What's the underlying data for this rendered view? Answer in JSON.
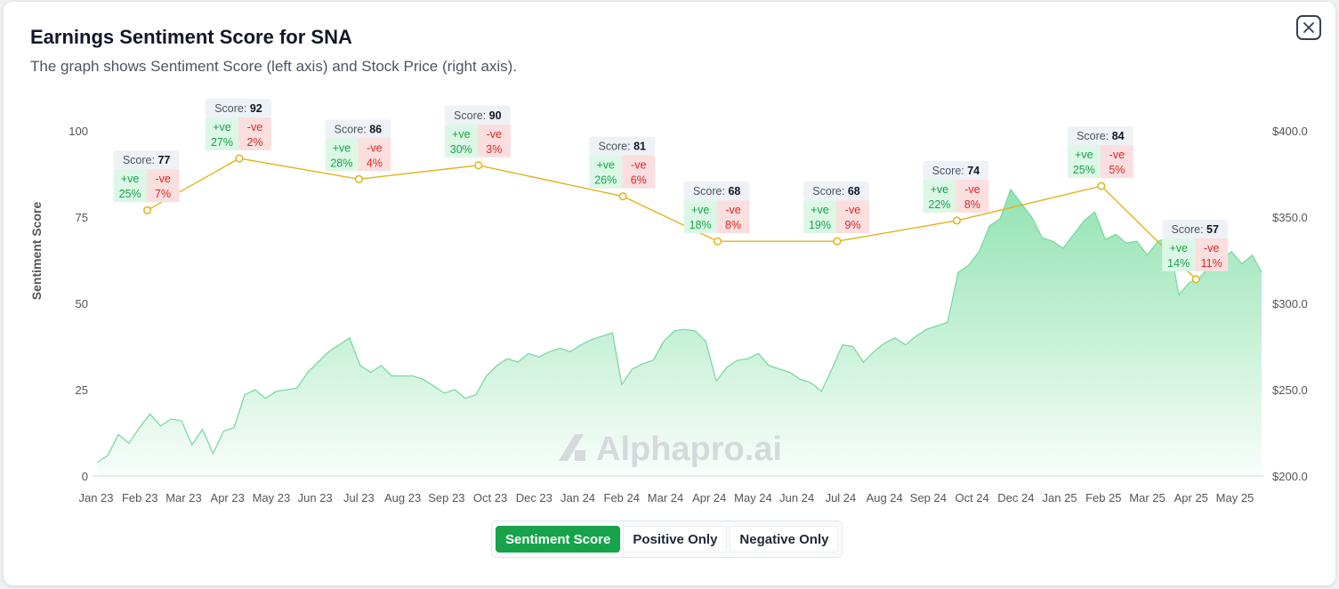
{
  "header": {
    "title": "Earnings Sentiment Score for SNA",
    "subtitle": "The graph shows Sentiment Score (left axis) and Stock Price (right axis).",
    "close_icon": "close-icon"
  },
  "toggles": [
    {
      "label": "Sentiment Score",
      "active": true
    },
    {
      "label": "Positive Only",
      "active": false
    },
    {
      "label": "Negative Only",
      "active": false
    }
  ],
  "watermark": "Alphapro.ai",
  "colors": {
    "score_line": "#e3b21a",
    "price_area": "#86e0aa",
    "positive": "#16a34a",
    "negative": "#dc2626",
    "accent": "#16a34a"
  },
  "chart_data": {
    "type": "line",
    "y_left_label": "Sentiment Score",
    "y_left_ticks": [
      "0",
      "25",
      "50",
      "75",
      "100"
    ],
    "y_left_range": [
      0,
      100
    ],
    "y_right_ticks": [
      "$200.0",
      "$250.0",
      "$300.0",
      "$350.0",
      "$400.0"
    ],
    "y_right_range": [
      200,
      400
    ],
    "x_ticks": [
      "Jan 23",
      "Feb 23",
      "Mar 23",
      "Apr 23",
      "May 23",
      "Jun 23",
      "Jul 23",
      "Aug 23",
      "Sep 23",
      "Oct 23",
      "Dec 23",
      "Jan 24",
      "Feb 24",
      "Mar 24",
      "Apr 24",
      "May 24",
      "Jun 24",
      "Jul 24",
      "Aug 24",
      "Sep 24",
      "Oct 24",
      "Dec 24",
      "Jan 25",
      "Feb 25",
      "Mar 25",
      "Apr 25",
      "May 25"
    ],
    "score_label": "Score:",
    "pos_label": "+ve",
    "neg_label": "-ve",
    "sentiment": [
      {
        "date": "2023-02-09",
        "score": 77,
        "positive": "25%",
        "negative": "7%"
      },
      {
        "date": "2023-04-20",
        "score": 92,
        "positive": "27%",
        "negative": "2%"
      },
      {
        "date": "2023-07-20",
        "score": 86,
        "positive": "28%",
        "negative": "4%"
      },
      {
        "date": "2023-10-19",
        "score": 90,
        "positive": "30%",
        "negative": "3%"
      },
      {
        "date": "2024-02-06",
        "score": 81,
        "positive": "26%",
        "negative": "6%"
      },
      {
        "date": "2024-04-18",
        "score": 68,
        "positive": "18%",
        "negative": "8%"
      },
      {
        "date": "2024-07-18",
        "score": 68,
        "positive": "19%",
        "negative": "9%"
      },
      {
        "date": "2024-10-17",
        "score": 74,
        "positive": "22%",
        "negative": "8%"
      },
      {
        "date": "2025-02-04",
        "score": 84,
        "positive": "25%",
        "negative": "5%"
      },
      {
        "date": "2025-04-17",
        "score": 57,
        "positive": "14%",
        "negative": "11%"
      }
    ],
    "price": [
      {
        "date": "2023-01-02",
        "value": 208
      },
      {
        "date": "2023-01-10",
        "value": 212
      },
      {
        "date": "2023-01-18",
        "value": 224
      },
      {
        "date": "2023-01-26",
        "value": 219
      },
      {
        "date": "2023-02-03",
        "value": 228
      },
      {
        "date": "2023-02-11",
        "value": 236
      },
      {
        "date": "2023-02-19",
        "value": 229
      },
      {
        "date": "2023-02-27",
        "value": 233
      },
      {
        "date": "2023-03-07",
        "value": 232
      },
      {
        "date": "2023-03-15",
        "value": 218
      },
      {
        "date": "2023-03-23",
        "value": 227
      },
      {
        "date": "2023-03-31",
        "value": 213
      },
      {
        "date": "2023-04-08",
        "value": 226
      },
      {
        "date": "2023-04-16",
        "value": 228
      },
      {
        "date": "2023-04-24",
        "value": 247
      },
      {
        "date": "2023-05-02",
        "value": 250
      },
      {
        "date": "2023-05-10",
        "value": 245
      },
      {
        "date": "2023-05-18",
        "value": 249
      },
      {
        "date": "2023-05-26",
        "value": 250
      },
      {
        "date": "2023-06-03",
        "value": 251
      },
      {
        "date": "2023-06-11",
        "value": 260
      },
      {
        "date": "2023-06-19",
        "value": 266
      },
      {
        "date": "2023-06-27",
        "value": 272
      },
      {
        "date": "2023-07-05",
        "value": 276
      },
      {
        "date": "2023-07-13",
        "value": 280
      },
      {
        "date": "2023-07-21",
        "value": 264
      },
      {
        "date": "2023-07-29",
        "value": 260
      },
      {
        "date": "2023-08-06",
        "value": 264
      },
      {
        "date": "2023-08-14",
        "value": 258
      },
      {
        "date": "2023-08-22",
        "value": 258
      },
      {
        "date": "2023-08-30",
        "value": 258
      },
      {
        "date": "2023-09-07",
        "value": 256
      },
      {
        "date": "2023-09-15",
        "value": 252
      },
      {
        "date": "2023-09-23",
        "value": 248
      },
      {
        "date": "2023-10-01",
        "value": 250
      },
      {
        "date": "2023-10-09",
        "value": 245
      },
      {
        "date": "2023-10-17",
        "value": 247
      },
      {
        "date": "2023-10-25",
        "value": 258
      },
      {
        "date": "2023-11-02",
        "value": 264
      },
      {
        "date": "2023-11-10",
        "value": 268
      },
      {
        "date": "2023-11-18",
        "value": 266
      },
      {
        "date": "2023-11-26",
        "value": 271
      },
      {
        "date": "2023-12-04",
        "value": 269
      },
      {
        "date": "2023-12-12",
        "value": 272
      },
      {
        "date": "2023-12-20",
        "value": 274
      },
      {
        "date": "2023-12-28",
        "value": 272
      },
      {
        "date": "2024-01-05",
        "value": 276
      },
      {
        "date": "2024-01-13",
        "value": 279
      },
      {
        "date": "2024-01-21",
        "value": 281
      },
      {
        "date": "2024-01-29",
        "value": 283
      },
      {
        "date": "2024-02-05",
        "value": 253
      },
      {
        "date": "2024-02-13",
        "value": 262
      },
      {
        "date": "2024-02-21",
        "value": 265
      },
      {
        "date": "2024-02-29",
        "value": 267
      },
      {
        "date": "2024-03-08",
        "value": 278
      },
      {
        "date": "2024-03-16",
        "value": 284
      },
      {
        "date": "2024-03-24",
        "value": 285
      },
      {
        "date": "2024-04-01",
        "value": 284
      },
      {
        "date": "2024-04-09",
        "value": 278
      },
      {
        "date": "2024-04-17",
        "value": 255
      },
      {
        "date": "2024-04-25",
        "value": 263
      },
      {
        "date": "2024-05-03",
        "value": 267
      },
      {
        "date": "2024-05-11",
        "value": 268
      },
      {
        "date": "2024-05-19",
        "value": 271
      },
      {
        "date": "2024-05-27",
        "value": 264
      },
      {
        "date": "2024-06-04",
        "value": 262
      },
      {
        "date": "2024-06-12",
        "value": 260
      },
      {
        "date": "2024-06-20",
        "value": 256
      },
      {
        "date": "2024-06-28",
        "value": 254
      },
      {
        "date": "2024-07-06",
        "value": 249
      },
      {
        "date": "2024-07-14",
        "value": 262
      },
      {
        "date": "2024-07-22",
        "value": 276
      },
      {
        "date": "2024-07-30",
        "value": 275
      },
      {
        "date": "2024-08-07",
        "value": 266
      },
      {
        "date": "2024-08-15",
        "value": 272
      },
      {
        "date": "2024-08-23",
        "value": 277
      },
      {
        "date": "2024-08-31",
        "value": 280
      },
      {
        "date": "2024-09-08",
        "value": 276
      },
      {
        "date": "2024-09-16",
        "value": 281
      },
      {
        "date": "2024-09-24",
        "value": 285
      },
      {
        "date": "2024-10-02",
        "value": 287
      },
      {
        "date": "2024-10-10",
        "value": 289
      },
      {
        "date": "2024-10-18",
        "value": 318
      },
      {
        "date": "2024-10-26",
        "value": 322
      },
      {
        "date": "2024-11-03",
        "value": 330
      },
      {
        "date": "2024-11-11",
        "value": 345
      },
      {
        "date": "2024-11-19",
        "value": 349
      },
      {
        "date": "2024-11-27",
        "value": 366
      },
      {
        "date": "2024-12-05",
        "value": 358
      },
      {
        "date": "2024-12-13",
        "value": 350
      },
      {
        "date": "2024-12-21",
        "value": 338
      },
      {
        "date": "2024-12-29",
        "value": 336
      },
      {
        "date": "2025-01-06",
        "value": 332
      },
      {
        "date": "2025-01-14",
        "value": 340
      },
      {
        "date": "2025-01-22",
        "value": 348
      },
      {
        "date": "2025-01-30",
        "value": 353
      },
      {
        "date": "2025-02-07",
        "value": 337
      },
      {
        "date": "2025-02-15",
        "value": 340
      },
      {
        "date": "2025-02-23",
        "value": 335
      },
      {
        "date": "2025-03-03",
        "value": 336
      },
      {
        "date": "2025-03-11",
        "value": 328
      },
      {
        "date": "2025-03-19",
        "value": 336
      },
      {
        "date": "2025-03-27",
        "value": 338
      },
      {
        "date": "2025-04-04",
        "value": 305
      },
      {
        "date": "2025-04-12",
        "value": 312
      },
      {
        "date": "2025-04-20",
        "value": 315
      },
      {
        "date": "2025-04-28",
        "value": 322
      },
      {
        "date": "2025-05-06",
        "value": 325
      },
      {
        "date": "2025-05-14",
        "value": 330
      },
      {
        "date": "2025-05-22",
        "value": 323
      },
      {
        "date": "2025-05-30",
        "value": 328
      },
      {
        "date": "2025-06-06",
        "value": 318
      }
    ],
    "grid": false,
    "legend": "none"
  }
}
